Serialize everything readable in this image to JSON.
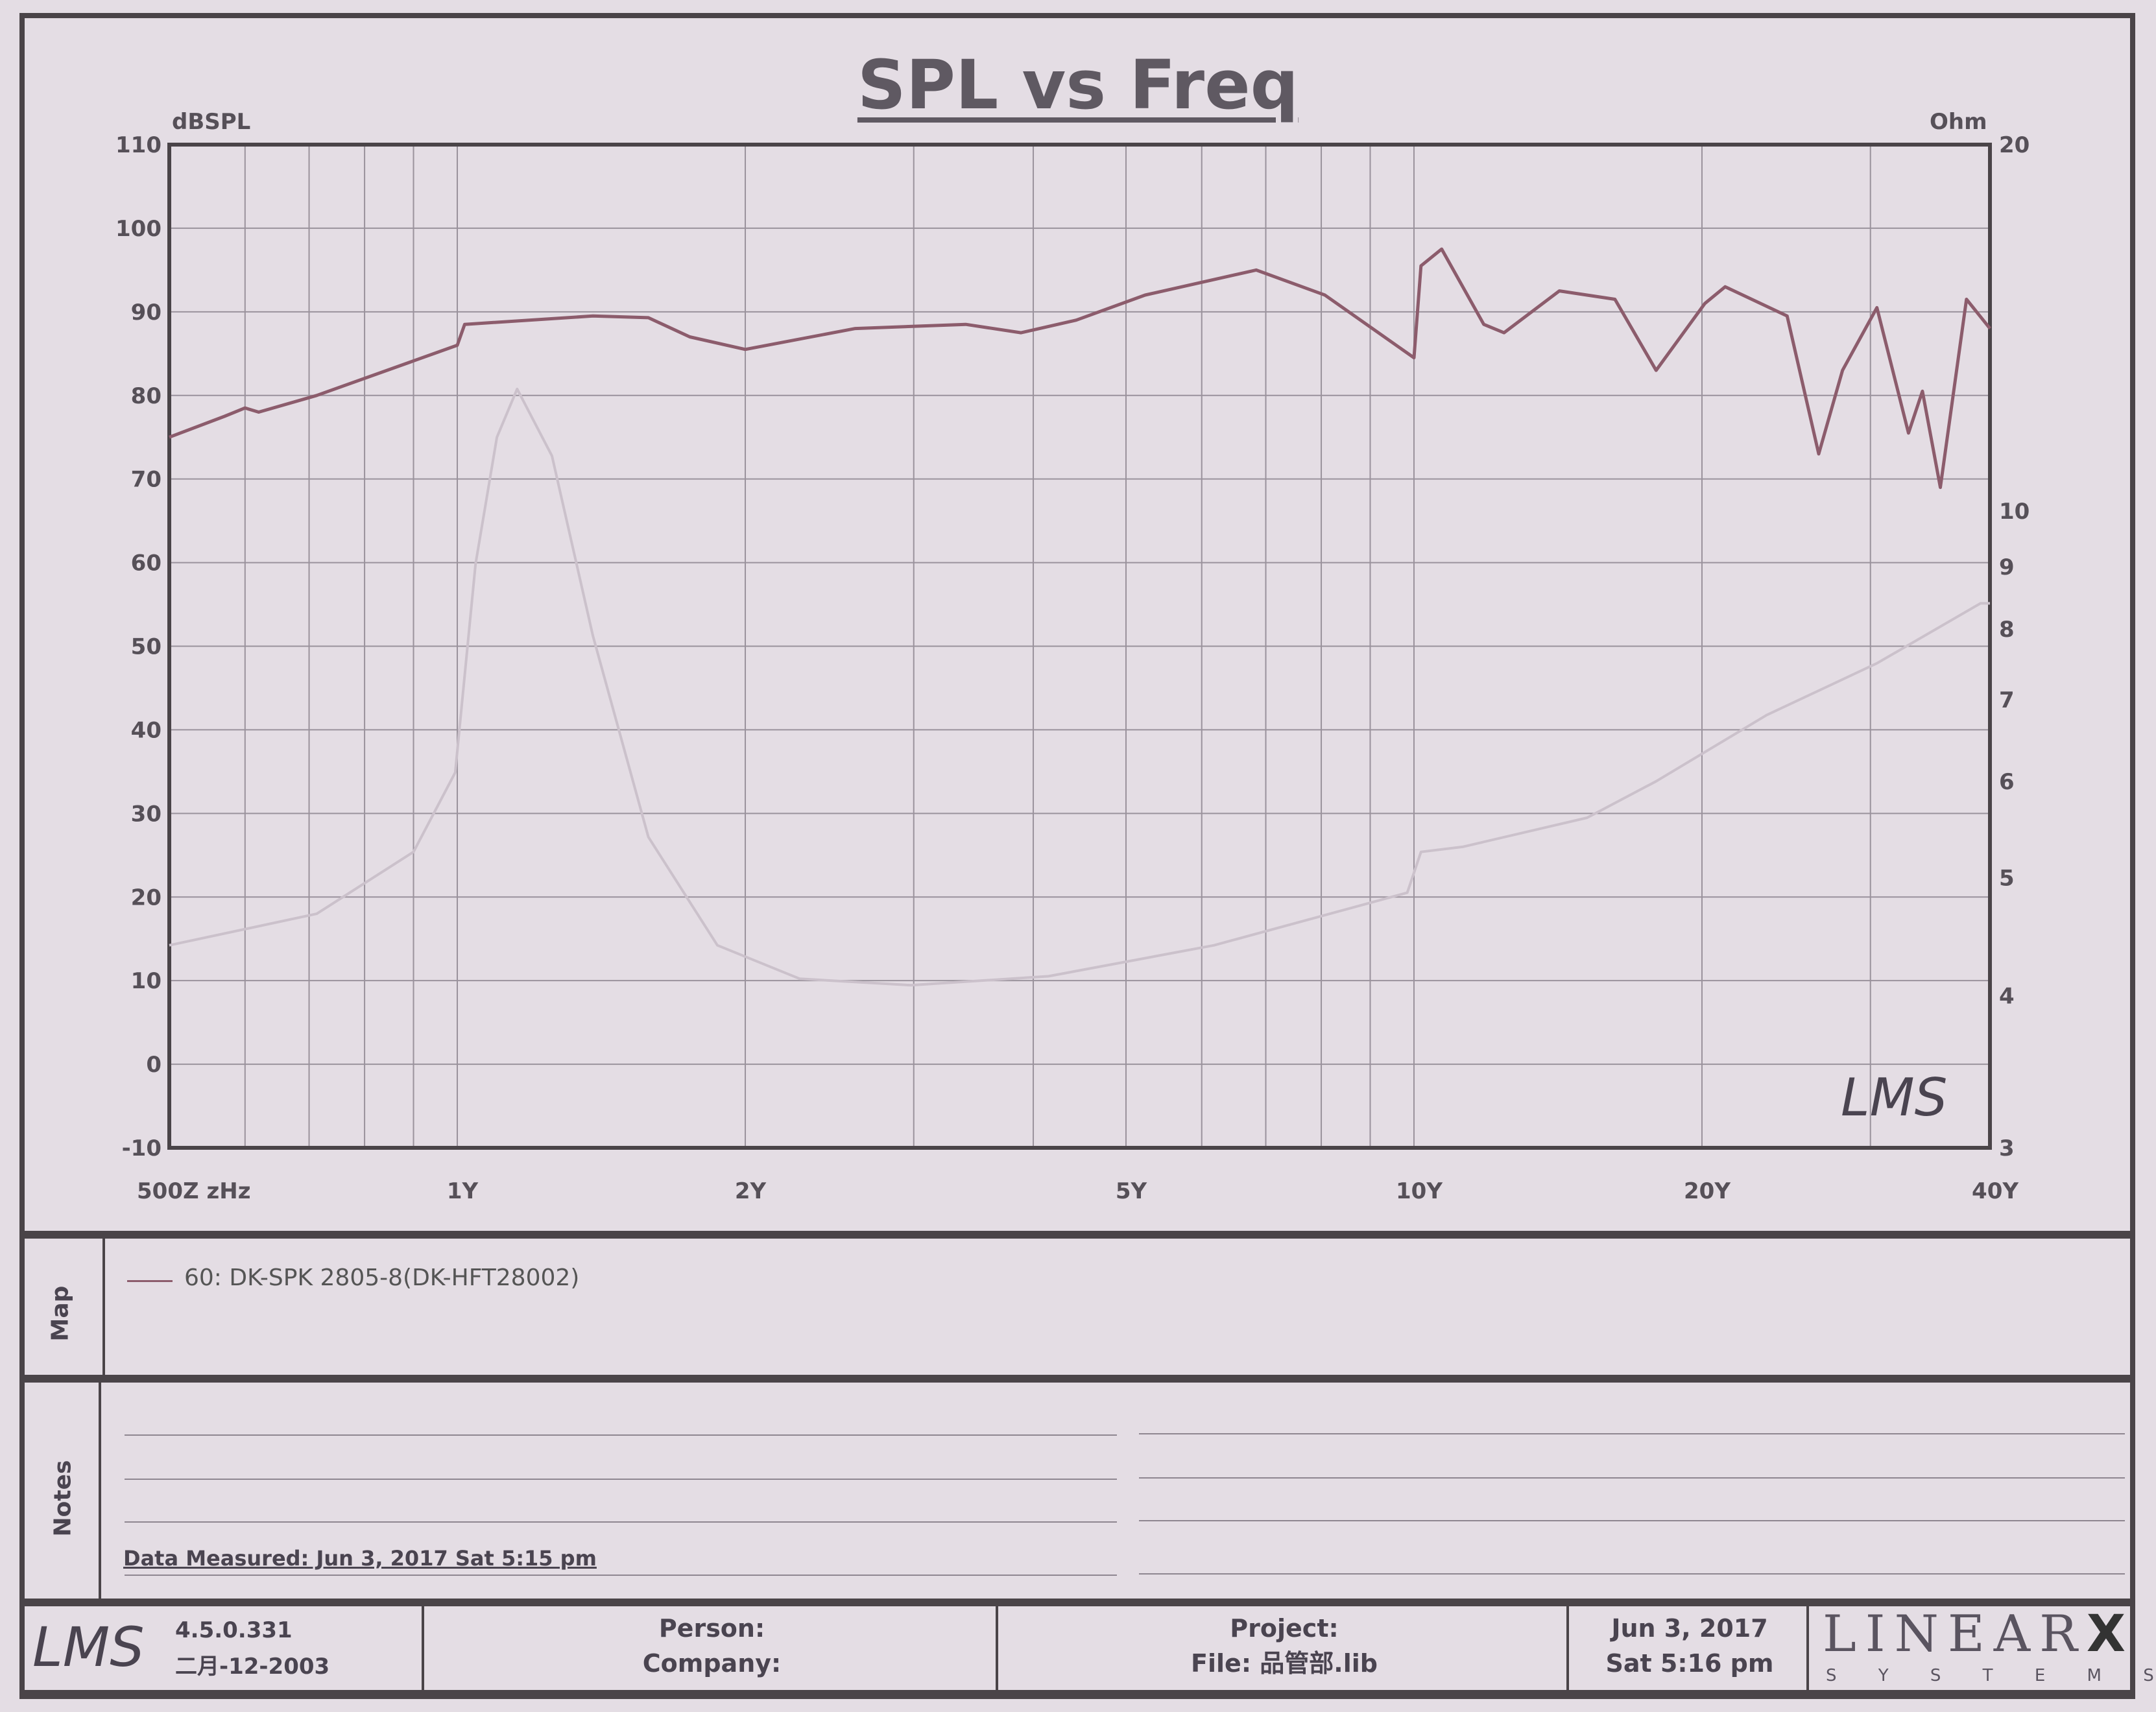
{
  "chart_data": {
    "type": "line",
    "title": "SPL vs Freq",
    "ylabel": "dBSPL",
    "ylabel_right": "Ohm",
    "xscale": "log",
    "xlim": [
      500,
      40000
    ],
    "ylim": [
      -10,
      110
    ],
    "ylim_right": [
      3,
      20
    ],
    "yscale_right": "log",
    "grid": true,
    "x_ticks": [
      {
        "value": 500,
        "label": "500Z zHz"
      },
      {
        "value": 1000,
        "label": "1Y"
      },
      {
        "value": 2000,
        "label": "2Y"
      },
      {
        "value": 5000,
        "label": "5Y"
      },
      {
        "value": 10000,
        "label": "10Y"
      },
      {
        "value": 20000,
        "label": "20Y"
      },
      {
        "value": 40000,
        "label": "40Y"
      }
    ],
    "y_ticks": [
      "110",
      "100",
      "90",
      "80",
      "70",
      "60",
      "50",
      "40",
      "30",
      "20",
      "10",
      "0",
      "-10"
    ],
    "y_ticks_right": [
      {
        "value": 20,
        "label": "20"
      },
      {
        "value": 10,
        "label": "10"
      },
      {
        "value": 9,
        "label": "9"
      },
      {
        "value": 8,
        "label": "8"
      },
      {
        "value": 7,
        "label": "7"
      },
      {
        "value": 6,
        "label": "6"
      },
      {
        "value": 5,
        "label": "5"
      },
      {
        "value": 4,
        "label": "4"
      },
      {
        "value": 3,
        "label": "3"
      }
    ],
    "series": [
      {
        "name": "SPL",
        "axis": "left",
        "color": "#8c5c6c",
        "x": [
          500,
          571,
          600,
          620,
          713,
          1000,
          1018,
          1386,
          1584,
          1750,
          2000,
          2606,
          3400,
          3884,
          4435,
          5236,
          6840,
          8070,
          10000,
          10170,
          10690,
          11830,
          12420,
          14190,
          16220,
          17910,
          20140,
          21150,
          24550,
          26490,
          28050,
          30470,
          32880,
          34000,
          35500,
          37800,
          40000
        ],
        "y": [
          75,
          77.5,
          78.5,
          78,
          80,
          86,
          88.5,
          89.5,
          89.3,
          87,
          85.5,
          88,
          88.5,
          87.5,
          89,
          92,
          95,
          92,
          84.5,
          95.5,
          97.5,
          88.5,
          87.5,
          92.5,
          91.5,
          83,
          91,
          93,
          89.5,
          73,
          83,
          90.5,
          75.5,
          80.5,
          69,
          91.5,
          88
        ]
      },
      {
        "name": "Impedance",
        "axis": "right",
        "color": "#cbc1cb",
        "x": [
          500,
          713,
          900,
          995,
          1045,
          1100,
          1155,
          1256,
          1386,
          1584,
          1870,
          2280,
          2980,
          4150,
          6180,
          9840,
          10170,
          11240,
          15170,
          17910,
          23370,
          30470,
          39100,
          40000
        ],
        "y": [
          4.4,
          4.67,
          5.25,
          6.1,
          9.05,
          11.5,
          12.6,
          11.1,
          7.9,
          5.4,
          4.4,
          4.13,
          4.08,
          4.15,
          4.4,
          4.86,
          5.25,
          5.3,
          5.6,
          6.0,
          6.8,
          7.5,
          8.4,
          8.4
        ]
      }
    ],
    "watermark": "LMS"
  },
  "map": {
    "label": "Map",
    "legend_entry": "60: DK-SPK 2805-8(DK-HFT28002)"
  },
  "notes": {
    "label": "Notes",
    "data_measured": "Data Measured: Jun  3, 2017  Sat  5:15 pm"
  },
  "footer": {
    "logo": "LMS",
    "version": "4.5.0.331",
    "version_date": "二月-12-2003",
    "person_label": "Person:",
    "company_label": "Company:",
    "project_label": "Project:",
    "file_label": "File: 品管部.lib",
    "date": "Jun  3, 2017",
    "time": "Sat  5:16 pm",
    "brand": "LINEAR",
    "brand_x": "X",
    "brand_sub": "S Y S T E M S"
  }
}
